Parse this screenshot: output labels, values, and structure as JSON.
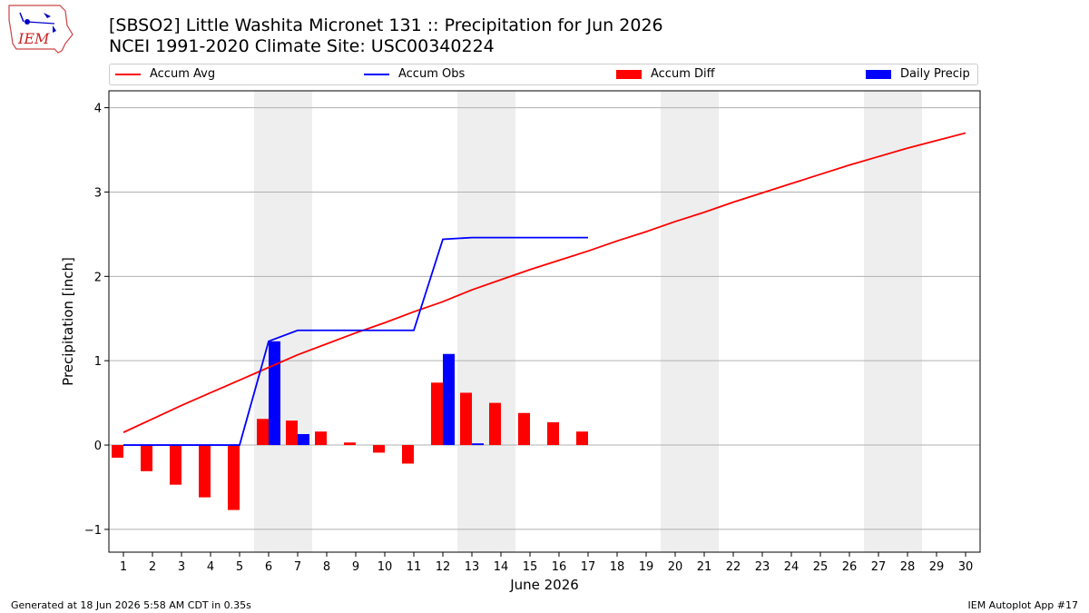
{
  "header": {
    "title_line1": "[SBSO2] Little Washita Micronet 131 :: Precipitation for Jun 2026",
    "title_line2": "NCEI 1991-2020 Climate Site: USC00340224",
    "logo_text": "IEM"
  },
  "legend": [
    {
      "label": "Accum Avg",
      "color": "#ff0000",
      "kind": "line"
    },
    {
      "label": "Accum Obs",
      "color": "#0000ff",
      "kind": "line"
    },
    {
      "label": "Accum Diff",
      "color": "#ff0000",
      "kind": "box"
    },
    {
      "label": "Daily Precip",
      "color": "#0000ff",
      "kind": "box"
    }
  ],
  "footer": {
    "left": "Generated at 18 Jun 2026 5:58 AM CDT in 0.35s",
    "right": "IEM Autoplot App #17"
  },
  "chart_data": {
    "type": "bar",
    "xlabel": "June 2026",
    "ylabel": "Precipitation [inch]",
    "ylim": [
      -1.27,
      4.2
    ],
    "yticks": [
      -1,
      0,
      1,
      2,
      3,
      4
    ],
    "ytick_labels": [
      "−1",
      "0",
      "1",
      "2",
      "3",
      "4"
    ],
    "grid": "horizontal",
    "legend_position": "top",
    "days": [
      1,
      2,
      3,
      4,
      5,
      6,
      7,
      8,
      9,
      10,
      11,
      12,
      13,
      14,
      15,
      16,
      17,
      18,
      19,
      20,
      21,
      22,
      23,
      24,
      25,
      26,
      27,
      28,
      29,
      30
    ],
    "weekend_shading": [
      [
        6,
        7
      ],
      [
        13,
        14
      ],
      [
        20,
        21
      ],
      [
        27,
        28
      ]
    ],
    "series": [
      {
        "name": "Accum Avg",
        "kind": "line",
        "color": "#ff0000",
        "values": [
          0.15,
          0.31,
          0.47,
          0.62,
          0.77,
          0.92,
          1.07,
          1.2,
          1.33,
          1.45,
          1.58,
          1.7,
          1.84,
          1.96,
          2.08,
          2.19,
          2.3,
          2.42,
          2.53,
          2.65,
          2.76,
          2.88,
          2.99,
          3.1,
          3.21,
          3.32,
          3.42,
          3.52,
          3.61,
          3.7
        ]
      },
      {
        "name": "Accum Obs",
        "kind": "line",
        "color": "#0000ff",
        "values": [
          0,
          0,
          0,
          0,
          0,
          1.23,
          1.36,
          1.36,
          1.36,
          1.36,
          1.36,
          2.44,
          2.46,
          2.46,
          2.46,
          2.46,
          2.46
        ]
      },
      {
        "name": "Accum Diff",
        "kind": "bar",
        "color": "#ff0000",
        "values": [
          -0.15,
          -0.31,
          -0.47,
          -0.62,
          -0.77,
          0.31,
          0.29,
          0.16,
          0.03,
          -0.09,
          -0.22,
          0.74,
          0.62,
          0.5,
          0.38,
          0.27,
          0.16
        ]
      },
      {
        "name": "Daily Precip",
        "kind": "bar",
        "color": "#0000ff",
        "values": [
          0,
          0,
          0,
          0,
          0,
          1.23,
          0.13,
          0,
          0,
          0,
          0,
          1.08,
          0.02,
          0,
          0,
          0,
          0
        ]
      }
    ]
  }
}
